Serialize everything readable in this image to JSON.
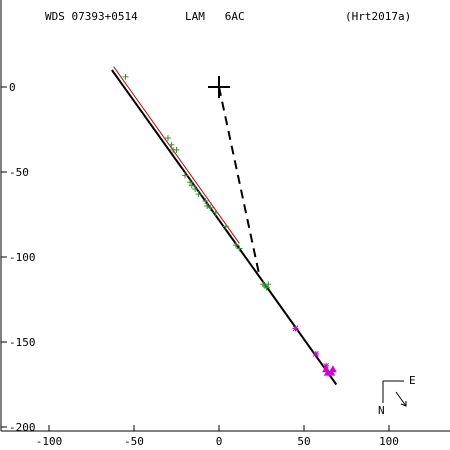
{
  "header": {
    "name": "WDS 07393+0514",
    "discoverer": "LAM   6AC",
    "reference": "(Hrt2017a)"
  },
  "compass": {
    "north": "N",
    "east": "E"
  },
  "chart_data": {
    "type": "scatter",
    "title": "",
    "xlabel": "",
    "ylabel": "",
    "xlim": [
      -125,
      135
    ],
    "ylim": [
      -210,
      30
    ],
    "x_ticks": [
      -100,
      -50,
      0,
      50,
      100
    ],
    "y_ticks": [
      0,
      -50,
      -100,
      -150,
      -200
    ],
    "grid": false,
    "primary": {
      "x": 0,
      "y": 0
    },
    "series": [
      {
        "marker": "plus",
        "color": "#2e9a2e",
        "points": [
          [
            -55,
            6
          ],
          [
            -30,
            -30
          ],
          [
            -28,
            -34
          ],
          [
            -27,
            -37
          ],
          [
            -25,
            -37
          ],
          [
            -20,
            -52
          ],
          [
            -17,
            -56
          ],
          [
            -16,
            -58
          ],
          [
            -14,
            -60
          ],
          [
            -12,
            -63
          ],
          [
            -8,
            -67
          ],
          [
            -7,
            -70
          ],
          [
            -5,
            -71
          ],
          [
            -2,
            -74
          ],
          [
            4,
            -82
          ],
          [
            10,
            -93
          ],
          [
            12,
            -95
          ],
          [
            26,
            -116
          ],
          [
            27,
            -117
          ],
          [
            28,
            -118
          ],
          [
            29,
            -116
          ]
        ]
      },
      {
        "marker": "asterisk",
        "color": "#d400d4",
        "points": [
          [
            45,
            -142
          ],
          [
            57,
            -157
          ],
          [
            63,
            -164
          ]
        ]
      },
      {
        "marker": "triangle",
        "color": "#d400d4",
        "points": [
          [
            63,
            -166
          ],
          [
            64,
            -168
          ],
          [
            66,
            -168
          ],
          [
            67,
            -166
          ]
        ]
      }
    ],
    "orbit_line": {
      "color": "#000000",
      "from": [
        -63,
        10
      ],
      "to": [
        69,
        -175
      ]
    },
    "fit_line": {
      "color": "#cc0000",
      "from": [
        -62,
        12
      ],
      "to": [
        12,
        -92
      ]
    },
    "periastron_line": {
      "color": "#000000",
      "dash": true,
      "from": [
        0,
        0
      ],
      "to": [
        24,
        -112
      ]
    }
  }
}
